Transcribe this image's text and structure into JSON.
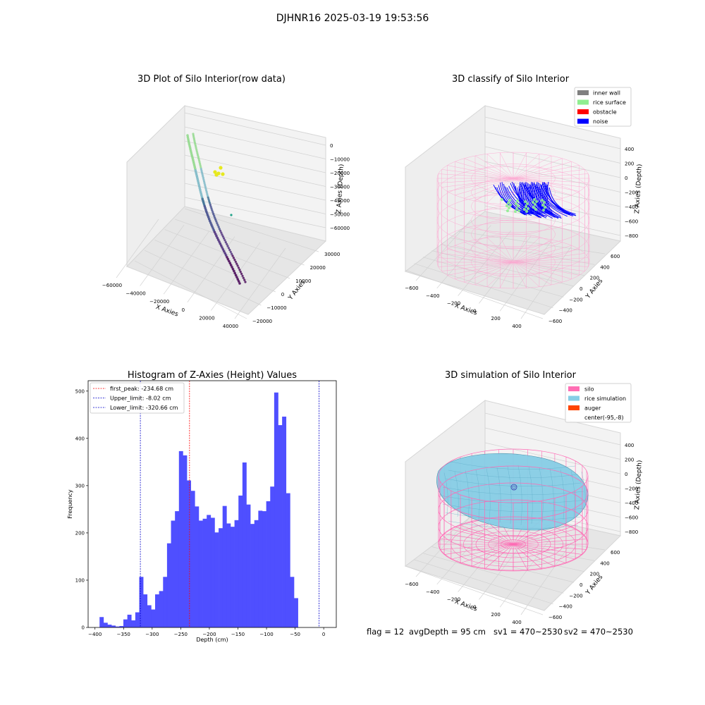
{
  "suptitle": "DJHNR16 2025-03-19 19:53:56",
  "status_line": {
    "flag": "flag = 12",
    "avg_depth": "avgDepth = 95 cm",
    "sv1": "sv1 = 470~2530",
    "sv2": "sv2 = 470~2530"
  },
  "colors": {
    "histogram_bar": "#4b4bff",
    "first_peak_line": "#ff0000",
    "limit_line": "#0000cc",
    "silo_wire": "#ff6eb4",
    "rice_simulation": "#87cee6",
    "auger": "#ff4500",
    "inner_wall": "#808080",
    "rice_surface": "#90ee90",
    "obstacle": "#ff0000",
    "noise": "#0000ff"
  },
  "chart_data": [
    {
      "type": "scatter3d",
      "title": "3D Plot of Silo Interior(row data)",
      "xlabel": "X Axies",
      "ylabel": "Y Axies",
      "zlabel": "Z Axies (Depth)",
      "xticks": [
        "−60000",
        "−40000",
        "−20000",
        "0",
        "20000",
        "40000"
      ],
      "yticks": [
        "−20000",
        "−10000",
        "0",
        "10000",
        "20000",
        "30000"
      ],
      "zticks": [
        "0",
        "−10000",
        "−20000",
        "−30000",
        "−40000",
        "−50000",
        "−60000"
      ],
      "colormap": "viridis"
    },
    {
      "type": "scatter3d",
      "title": "3D classify of Silo Interior",
      "xlabel": "X Axies",
      "ylabel": "Y Axies",
      "zlabel": "Z Axies (Depth)",
      "xticks": [
        "−600",
        "−400",
        "−200",
        "0",
        "200",
        "400"
      ],
      "yticks": [
        "−600",
        "−400",
        "−200",
        "0",
        "200",
        "400",
        "600"
      ],
      "zticks": [
        "400",
        "200",
        "0",
        "−200",
        "−400",
        "−600",
        "−800"
      ],
      "legend_position": "top-right",
      "legend": [
        {
          "label": "inner wall",
          "color": "#808080"
        },
        {
          "label": "rice surface",
          "color": "#90ee90"
        },
        {
          "label": "obstacle",
          "color": "#ff0000"
        },
        {
          "label": "noise",
          "color": "#0000ff"
        }
      ]
    },
    {
      "type": "bar",
      "title": "Histogram of Z-Axies (Height) Values",
      "xlabel": "Depth (cm)",
      "ylabel": "Frequency",
      "xlim": [
        -412,
        22
      ],
      "ylim": [
        0,
        522
      ],
      "xticks": [
        -400,
        -350,
        -300,
        -250,
        -200,
        -150,
        -100,
        -50,
        0
      ],
      "yticks": [
        0,
        100,
        200,
        300,
        400,
        500
      ],
      "bin_start": -392,
      "bin_width": 6.94,
      "values": [
        22,
        10,
        6,
        4,
        2,
        3,
        17,
        27,
        15,
        32,
        107,
        70,
        47,
        38,
        70,
        77,
        107,
        178,
        226,
        246,
        373,
        364,
        311,
        289,
        256,
        226,
        230,
        238,
        232,
        201,
        210,
        257,
        220,
        213,
        227,
        279,
        349,
        260,
        219,
        227,
        247,
        246,
        267,
        298,
        497,
        428,
        446,
        284,
        107,
        62
      ],
      "vlines": [
        {
          "label": "first_peak: -234.68 cm",
          "value": -234.68,
          "color": "#ff0000"
        },
        {
          "label": "Upper_limit: -8.02 cm",
          "value": -8.02,
          "color": "#0000cc"
        },
        {
          "label": "Lower_limit: -320.66 cm",
          "value": -320.66,
          "color": "#0000cc"
        }
      ],
      "legend_position": "top-left"
    },
    {
      "type": "surface3d",
      "title": "3D simulation of Silo Interior",
      "xlabel": "X Axies",
      "ylabel": "Y Axies",
      "zlabel": "Z Axies (Depth)",
      "xticks": [
        "−600",
        "−400",
        "−200",
        "0",
        "200",
        "400"
      ],
      "yticks": [
        "−600",
        "−400",
        "−200",
        "0",
        "200",
        "400",
        "600"
      ],
      "zticks": [
        "400",
        "200",
        "0",
        "−200",
        "−400",
        "−600",
        "−800"
      ],
      "legend_position": "top-right",
      "legend": [
        {
          "label": "silo",
          "color": "#ff6eb4"
        },
        {
          "label": "rice simulation",
          "color": "#87cee6"
        },
        {
          "label": "auger",
          "color": "#ff4500"
        },
        {
          "label": "center(-95,-8)",
          "color": ""
        }
      ]
    }
  ]
}
